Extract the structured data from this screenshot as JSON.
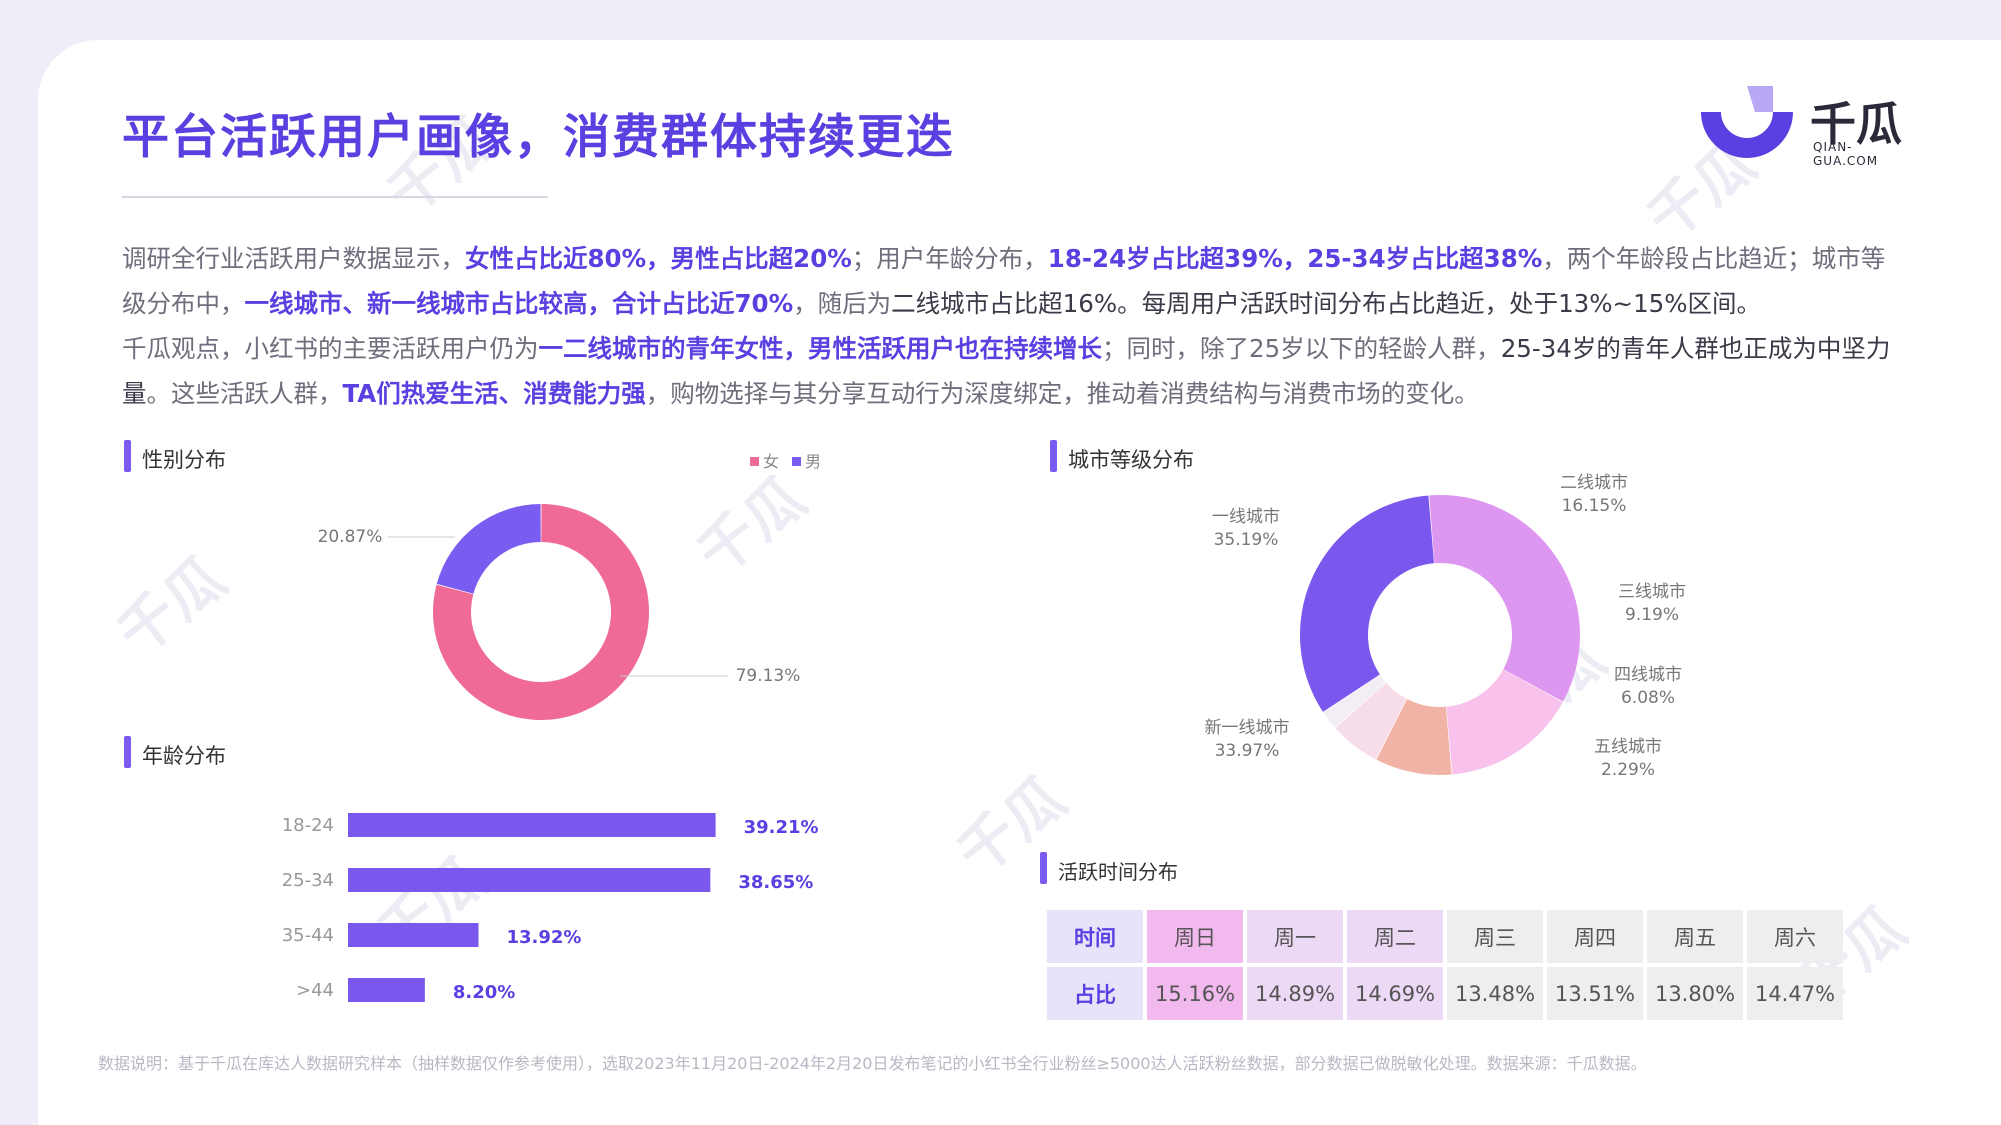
{
  "title": "平台活跃用户画像，消费群体持续更迭",
  "logo": {
    "name": "千瓜",
    "sub": "QIAN-GUA.COM",
    "watermark": "千瓜"
  },
  "paragraph1": [
    {
      "t": "调研全行业活跃用户数据显示，",
      "s": "n"
    },
    {
      "t": "女性占比近80%，男性占比超20%",
      "s": "h"
    },
    {
      "t": "；用户年龄分布，",
      "s": "n"
    },
    {
      "t": "18-24岁占比超39%，25-34岁占比超38%",
      "s": "h"
    },
    {
      "t": "，两个年龄段占比趋近；城市等级分布中，",
      "s": "n"
    },
    {
      "t": "一线城市、新一线城市占比较高，合计占比近70%",
      "s": "h"
    },
    {
      "t": "，随后为",
      "s": "n"
    },
    {
      "t": "二线城市占比超16%。每周用户活跃时间分布占比趋近，处于13%~15%区间。",
      "s": "d"
    }
  ],
  "paragraph2": [
    {
      "t": "千瓜观点，小红书的主要活跃用户仍为",
      "s": "n"
    },
    {
      "t": "一二线城市的青年女性，男性活跃用户也在持续增长",
      "s": "h"
    },
    {
      "t": "；同时，除了25岁以下的轻龄人群，",
      "s": "n"
    },
    {
      "t": "25-34岁的青年人群也正成为中坚力量",
      "s": "d"
    },
    {
      "t": "。这些活跃人群，",
      "s": "n"
    },
    {
      "t": "TA们热爱生活、消费能力强",
      "s": "h"
    },
    {
      "t": "，购物选择与其分享互动行为深度绑定，推动着消费结构与消费市场的变化。",
      "s": "n"
    }
  ],
  "sections": {
    "gender": "性别分布",
    "age": "年龄分布",
    "city": "城市等级分布",
    "time": "活跃时间分布"
  },
  "colors": {
    "accent": "#5b3fe0",
    "female": "#f06a96",
    "male": "#7b5cf0",
    "bar": "#7a58ee"
  },
  "chart_data": [
    {
      "type": "pie",
      "variant": "donut",
      "legend": [
        "女",
        "男"
      ],
      "labels": [
        "女",
        "男"
      ],
      "values": [
        79.13,
        20.87
      ],
      "value_labels": [
        "79.13%",
        "20.87%"
      ],
      "colors": [
        "#f06a96",
        "#7b5cf0"
      ],
      "legend_position": "top-right"
    },
    {
      "type": "bar",
      "orientation": "horizontal",
      "categories": [
        "18-24",
        "25-34",
        "35-44",
        ">44"
      ],
      "values": [
        39.21,
        38.65,
        13.92,
        8.2
      ],
      "value_labels": [
        "39.21%",
        "38.65%",
        "13.92%",
        "8.20%"
      ],
      "xlim": [
        0,
        40
      ]
    },
    {
      "type": "pie",
      "variant": "donut",
      "labels": [
        "一线城市",
        "二线城市",
        "三线城市",
        "四线城市",
        "五线城市",
        "新一线城市"
      ],
      "values": [
        35.19,
        16.15,
        9.19,
        6.08,
        2.29,
        33.97
      ],
      "value_labels": [
        "35.19%",
        "16.15%",
        "9.19%",
        "6.08%",
        "2.29%",
        "33.97%"
      ],
      "colors": [
        "#dd97f0",
        "#f8c2ec",
        "#f1b3a6",
        "#f7dcea",
        "#f3eef6",
        "#7a58ee"
      ]
    },
    {
      "type": "table",
      "row_headers": [
        "时间",
        "占比"
      ],
      "columns": [
        "周日",
        "周一",
        "周二",
        "周三",
        "周四",
        "周五",
        "周六"
      ],
      "values": [
        "15.16%",
        "14.89%",
        "14.69%",
        "13.48%",
        "13.51%",
        "13.80%",
        "14.47%"
      ]
    }
  ],
  "footnote": "数据说明：基于千瓜在库达人数据研究样本（抽样数据仅作参考使用），选取2023年11月20日-2024年2月20日发布笔记的小红书全行业粉丝≥5000达人活跃粉丝数据，部分数据已做脱敏化处理。数据来源：千瓜数据。"
}
